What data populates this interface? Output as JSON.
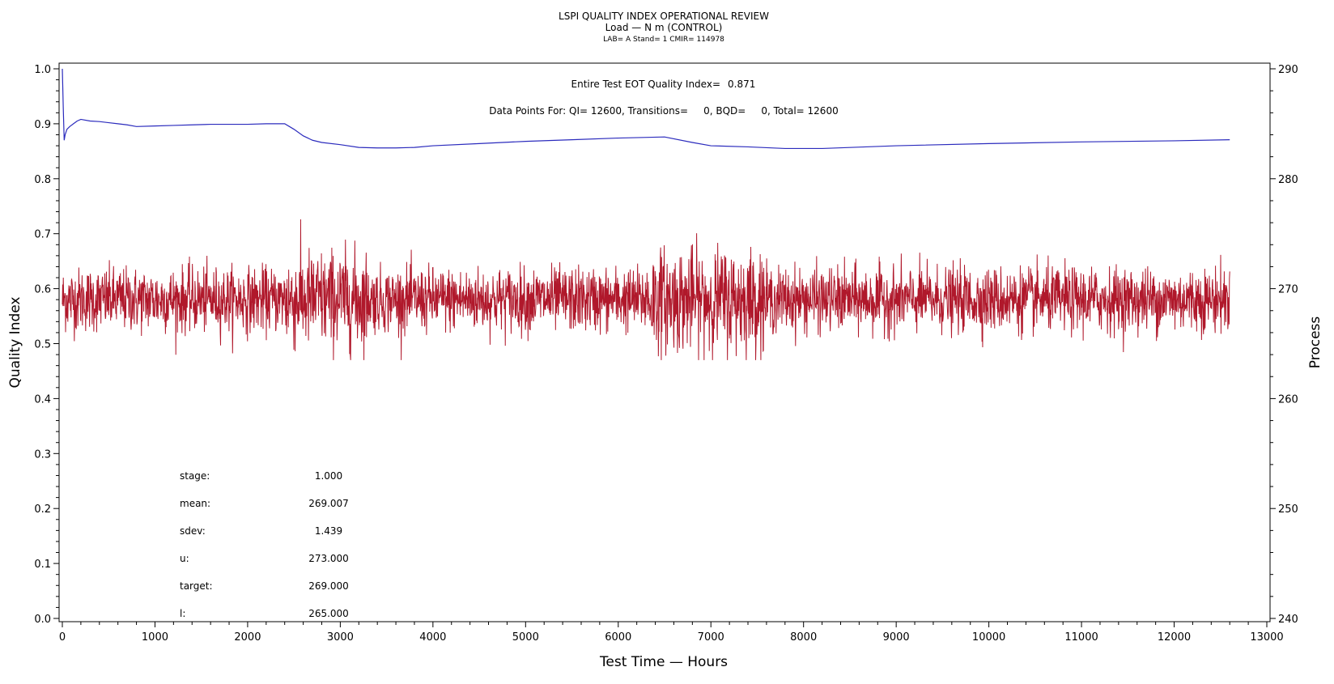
{
  "title": {
    "line1": "LSPI QUALITY INDEX OPERATIONAL REVIEW",
    "line2": "Load — N m (CONTROL)",
    "line3": "LAB= A Stand= 1 CMIR= 114978"
  },
  "annotations": {
    "eot_label": "Entire Test EOT Quality Index=",
    "eot_value": "0.871",
    "points_text": "Data Points For: QI= 12600, Transitions=     0, BQD=     0, Total= 12600"
  },
  "stats": [
    {
      "label": "stage:",
      "value": "1.000"
    },
    {
      "label": "mean:",
      "value": "269.007"
    },
    {
      "label": "sdev:",
      "value": "1.439"
    },
    {
      "label": "u:",
      "value": "273.000"
    },
    {
      "label": "target:",
      "value": "269.000"
    },
    {
      "label": "l:",
      "value": "265.000"
    }
  ],
  "colors": {
    "quality_index": "#2b2bbd",
    "process": "#b0182b",
    "axis": "#000000"
  },
  "chart_data": {
    "type": "line",
    "xlabel": "Test Time — Hours",
    "ylabel": "Quality Index",
    "y2label": "Process",
    "xlim": [
      0,
      13000
    ],
    "ylim": [
      0.0,
      1.0
    ],
    "y2lim": [
      240,
      290
    ],
    "xticks": [
      0,
      1000,
      2000,
      3000,
      4000,
      5000,
      6000,
      7000,
      8000,
      9000,
      10000,
      11000,
      12000,
      13000
    ],
    "yticks": [
      "0.0",
      "0.1",
      "0.2",
      "0.3",
      "0.4",
      "0.5",
      "0.6",
      "0.7",
      "0.8",
      "0.9",
      "1.0"
    ],
    "y2ticks": [
      240,
      250,
      260,
      270,
      280,
      290
    ],
    "grid": false,
    "series": [
      {
        "axis": "left",
        "x": [
          0,
          10,
          20,
          30,
          50,
          80,
          120,
          160,
          200,
          300,
          400,
          500,
          600,
          700,
          800,
          1000,
          1200,
          1400,
          1600,
          1800,
          2000,
          2200,
          2400,
          2500,
          2600,
          2700,
          2800,
          3000,
          3200,
          3400,
          3600,
          3800,
          4000,
          4500,
          5000,
          5500,
          6000,
          6500,
          6800,
          7000,
          7400,
          7800,
          8200,
          9000,
          10000,
          11000,
          12000,
          12600
        ],
        "values": [
          1.0,
          0.93,
          0.87,
          0.88,
          0.89,
          0.895,
          0.9,
          0.905,
          0.908,
          0.905,
          0.904,
          0.902,
          0.9,
          0.898,
          0.895,
          0.896,
          0.897,
          0.898,
          0.899,
          0.899,
          0.899,
          0.9,
          0.9,
          0.89,
          0.878,
          0.87,
          0.866,
          0.862,
          0.857,
          0.856,
          0.856,
          0.857,
          0.86,
          0.864,
          0.868,
          0.871,
          0.874,
          0.876,
          0.866,
          0.86,
          0.858,
          0.855,
          0.855,
          0.86,
          0.864,
          0.867,
          0.869,
          0.871
        ]
      },
      {
        "axis": "right",
        "x_start": 0,
        "x_end": 12600,
        "points": 12600,
        "target": 269,
        "mean": 269.007,
        "sdev": 1.439,
        "min": 263.5,
        "max": 276.5
      }
    ]
  }
}
